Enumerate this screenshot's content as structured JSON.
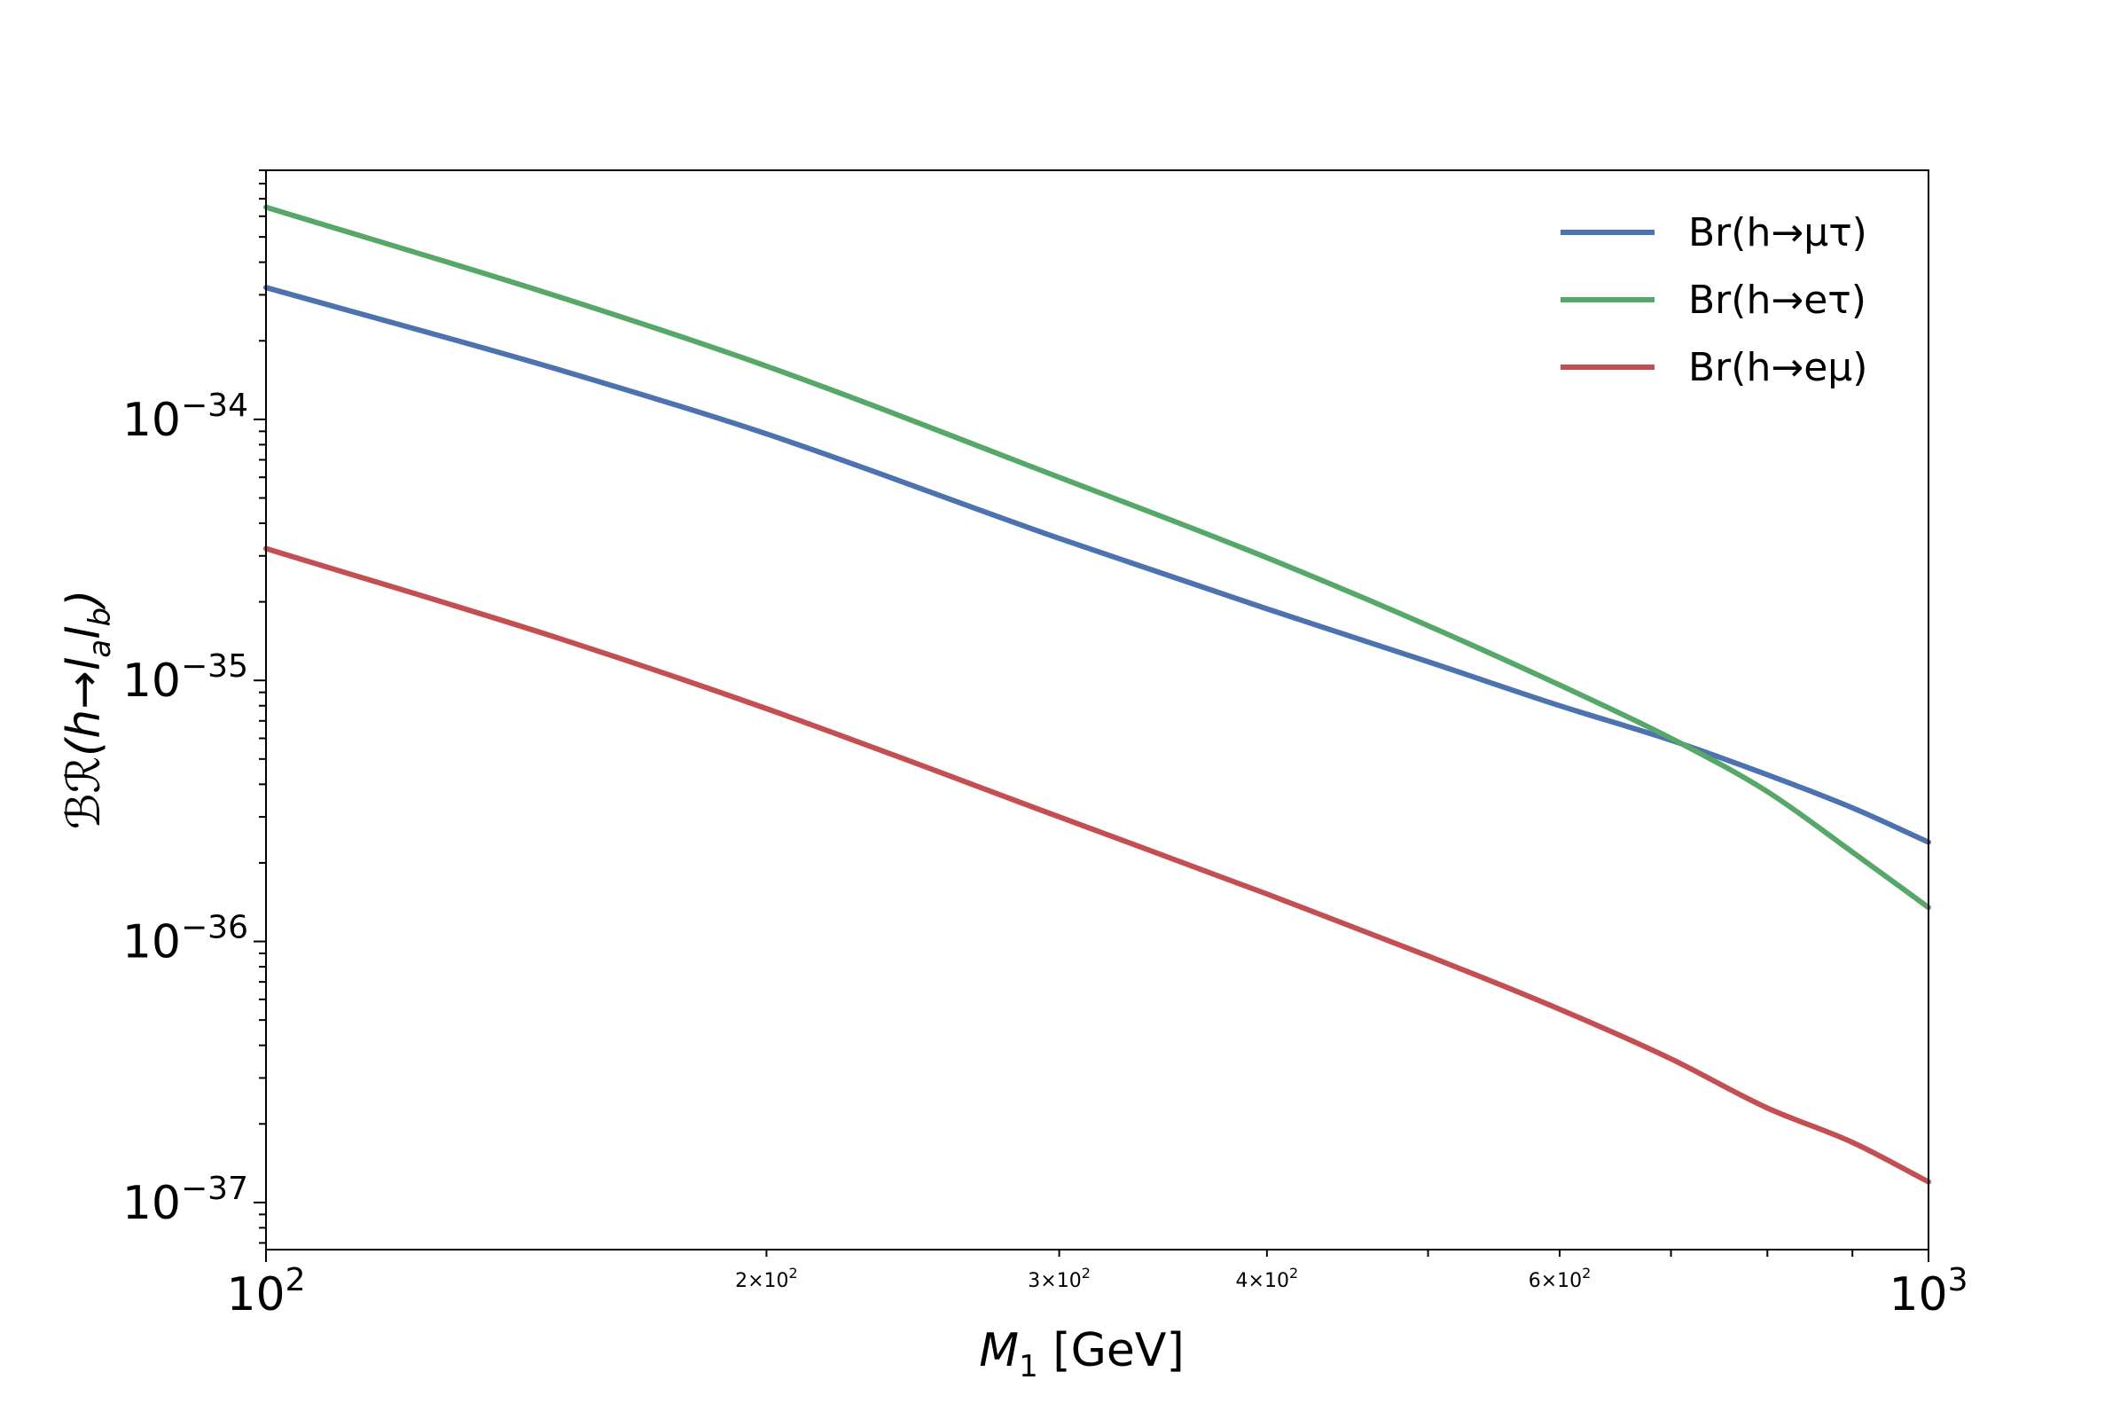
{
  "chart_data": {
    "type": "line",
    "title": "",
    "xlabel": {
      "symbol": "M",
      "sub": "1",
      "unit": " [GeV]"
    },
    "ylabel": {
      "prefix": "ℬℛ(h→l",
      "sub_a": "a",
      "mid": "l",
      "sub_b": "b",
      "suffix": ")"
    },
    "xscale": "log",
    "yscale": "log",
    "xlim": [
      100,
      1000
    ],
    "ylim": [
      6.6e-38,
      9e-34
    ],
    "grid": false,
    "legend_position": "top-right",
    "x_major_ticks": [
      {
        "value": 100,
        "base": "10",
        "exp": "2"
      },
      {
        "value": 1000,
        "base": "10",
        "exp": "3"
      }
    ],
    "x_minor_labels": [
      {
        "value": 200,
        "text": "2×10",
        "exp": "2"
      },
      {
        "value": 300,
        "text": "3×10",
        "exp": "2"
      },
      {
        "value": 400,
        "text": "4×10",
        "exp": "2"
      },
      {
        "value": 600,
        "text": "6×10",
        "exp": "2"
      }
    ],
    "y_major_ticks": [
      {
        "value": 1e-34,
        "base": "10",
        "exp": "−34"
      },
      {
        "value": 1e-35,
        "base": "10",
        "exp": "−35"
      },
      {
        "value": 1e-36,
        "base": "10",
        "exp": "−36"
      },
      {
        "value": 1e-37,
        "base": "10",
        "exp": "−37"
      }
    ],
    "x": [
      100,
      150,
      200,
      300,
      400,
      500,
      600,
      700,
      800,
      900,
      1000
    ],
    "series": [
      {
        "name": "Br(h→μτ)",
        "color": "#4c72b0",
        "values": [
          3.2e-34,
          1.55e-34,
          8.8e-35,
          3.5e-35,
          1.88e-35,
          1.18e-35,
          8e-36,
          5.9e-36,
          4.35e-36,
          3.25e-36,
          2.4e-36
        ]
      },
      {
        "name": "Br(h→eτ)",
        "color": "#55a868",
        "values": [
          6.5e-34,
          2.95e-34,
          1.6e-34,
          6e-35,
          2.95e-35,
          1.62e-35,
          9.6e-36,
          6e-36,
          3.75e-36,
          2.2e-36,
          1.35e-36
        ]
      },
      {
        "name": "Br(h→eμ)",
        "color": "#c44e52",
        "values": [
          3.2e-35,
          1.45e-35,
          7.8e-36,
          3e-36,
          1.52e-36,
          8.8e-37,
          5.5e-37,
          3.55e-37,
          2.3e-37,
          1.7e-37,
          1.2e-37
        ]
      }
    ]
  }
}
